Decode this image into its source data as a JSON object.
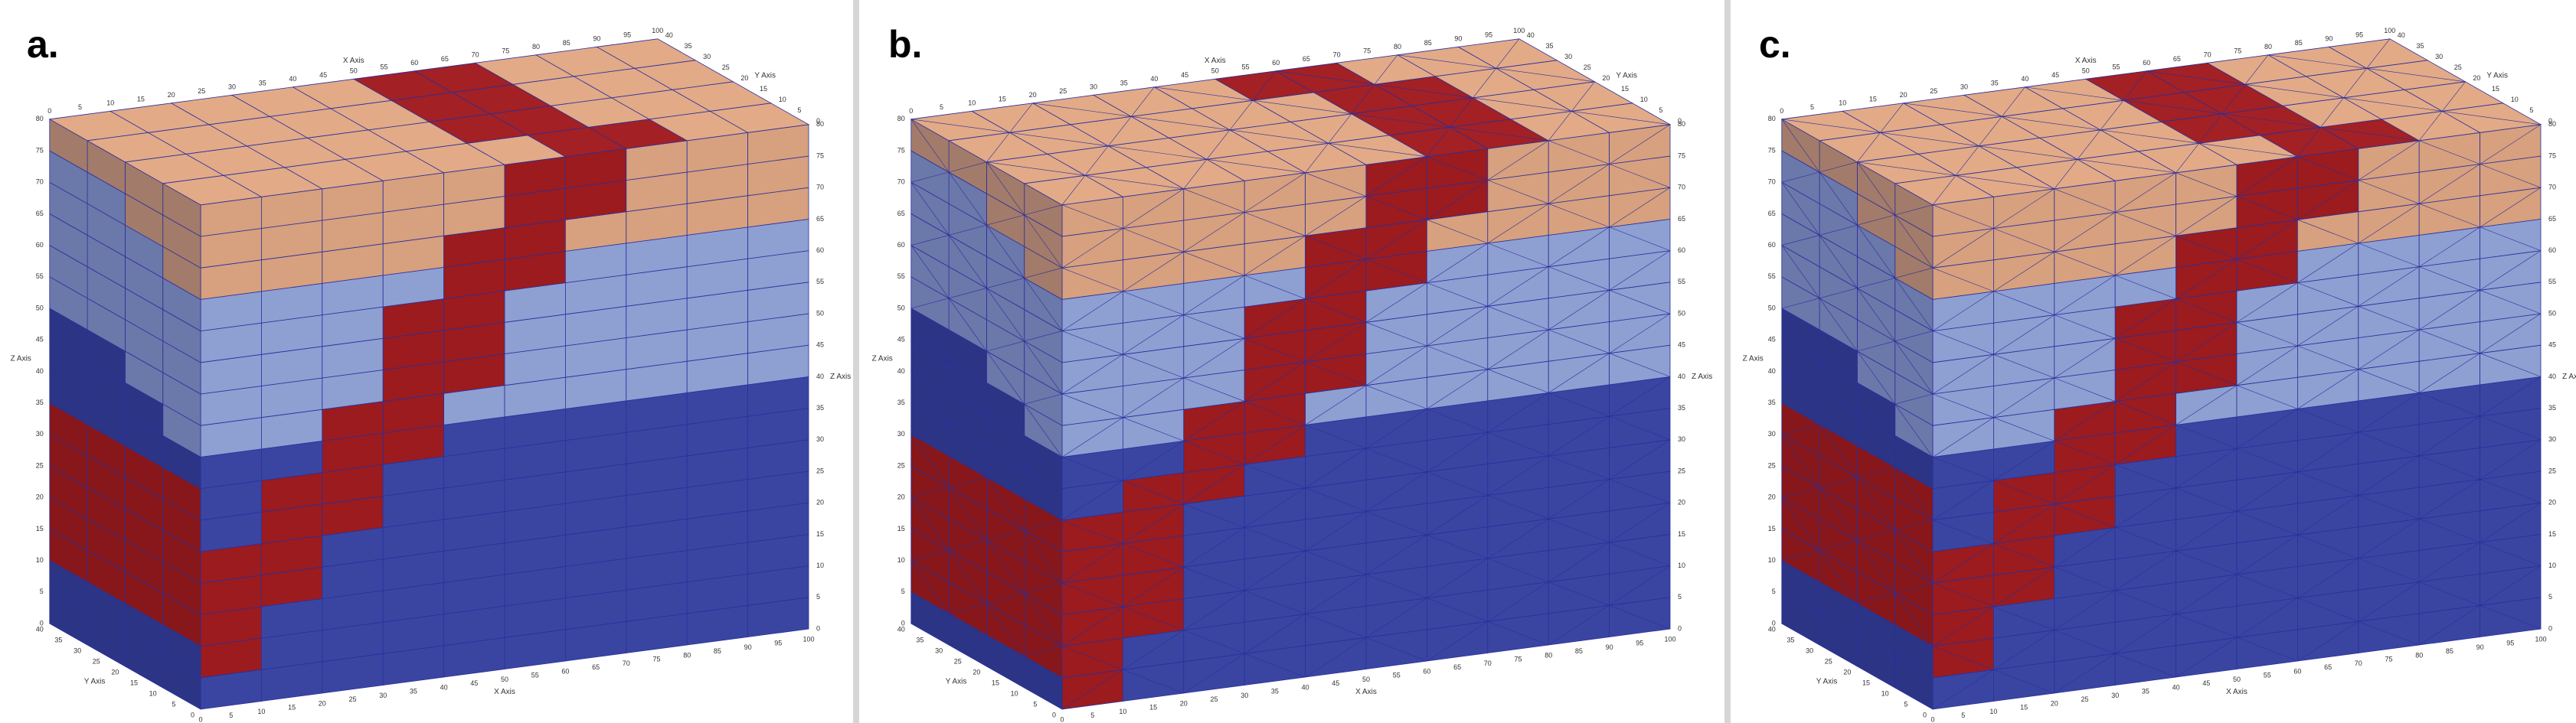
{
  "panels": [
    {
      "label": "a."
    },
    {
      "label": "b."
    },
    {
      "label": "c."
    }
  ],
  "axes": {
    "x_title": "X Axis",
    "y_title": "Y Axis",
    "z_title": "Z Axis",
    "x_ticks": [
      0,
      5,
      10,
      15,
      20,
      25,
      30,
      35,
      40,
      45,
      50,
      55,
      60,
      65,
      70,
      75,
      80,
      85,
      90,
      95,
      100
    ],
    "y_ticks": [
      0,
      5,
      10,
      15,
      20,
      25,
      30,
      35,
      40
    ],
    "z_ticks": [
      0,
      5,
      10,
      15,
      20,
      25,
      30,
      35,
      40,
      45,
      50,
      55,
      60,
      65,
      70,
      75,
      80
    ]
  }
}
